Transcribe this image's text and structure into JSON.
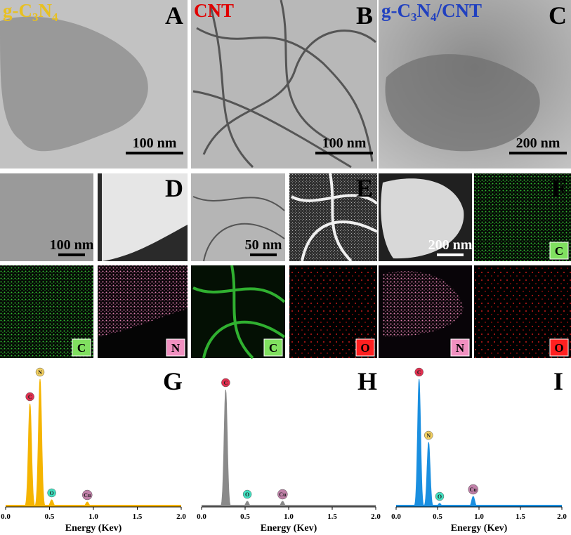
{
  "panels": [
    {
      "letter": "A",
      "name": [
        "g-C",
        "3",
        "N",
        "4"
      ],
      "name_color": "#e8c020",
      "scale_bar": "100 nm"
    },
    {
      "letter": "B",
      "name": [
        "CNT"
      ],
      "name_color": "#e00000",
      "scale_bar": "100 nm"
    },
    {
      "letter": "C",
      "name": [
        "g-C",
        "3",
        "N",
        "4",
        "/CNT"
      ],
      "name_color": "#2040c0",
      "scale_bar": "200 nm"
    }
  ],
  "row2": [
    {
      "scale_bar": "100 nm"
    },
    {
      "letter": "D"
    },
    {
      "scale_bar": "50 nm"
    },
    {
      "letter": "E"
    },
    {
      "scale_bar": "200 nm"
    },
    {
      "letter": "F",
      "element": "C"
    }
  ],
  "row3": [
    {
      "element": "C"
    },
    {
      "element": "N"
    },
    {
      "element": "C"
    },
    {
      "element": "O"
    },
    {
      "element": "N"
    },
    {
      "element": "O"
    }
  ],
  "chart_data": [
    {
      "type": "line",
      "letter": "G",
      "xlabel": "Energy (Kev)",
      "color": "#f5b400",
      "xlim": [
        0,
        2
      ],
      "xticks": [
        {
          "value": 0,
          "label": "0.0"
        },
        {
          "value": 0.5,
          "label": "0.5"
        },
        {
          "value": 1,
          "label": "1.0"
        },
        {
          "value": 1.5,
          "label": "1.5"
        },
        {
          "value": 2,
          "label": "2.0"
        }
      ],
      "ylim": [
        0,
        200
      ],
      "peaks": {
        "labels": [
          "C",
          "N",
          "O",
          "Cu"
        ],
        "x": [
          0.277,
          0.392,
          0.525,
          0.93
        ],
        "values": [
          147,
          182,
          10,
          7
        ]
      }
    },
    {
      "type": "line",
      "letter": "H",
      "xlabel": "Energy (Kev)",
      "color": "#8a8a8a",
      "xlim": [
        0,
        2
      ],
      "xticks": [
        {
          "value": 0,
          "label": "0.0"
        },
        {
          "value": 0.5,
          "label": "0.5"
        },
        {
          "value": 1,
          "label": "1.0"
        },
        {
          "value": 1.5,
          "label": "1.5"
        },
        {
          "value": 2,
          "label": "2.0"
        }
      ],
      "ylim": [
        0,
        200
      ],
      "peaks": {
        "labels": [
          "C",
          "O",
          "Cu"
        ],
        "x": [
          0.277,
          0.525,
          0.93
        ],
        "values": [
          167,
          8,
          8
        ]
      }
    },
    {
      "type": "line",
      "letter": "I",
      "xlabel": "Energy (Kev)",
      "color": "#1a8fe0",
      "xlim": [
        0,
        2
      ],
      "xticks": [
        {
          "value": 0,
          "label": "0.0"
        },
        {
          "value": 0.5,
          "label": "0.5"
        },
        {
          "value": 1,
          "label": "1.0"
        },
        {
          "value": 1.5,
          "label": "1.5"
        },
        {
          "value": 2,
          "label": "2.0"
        }
      ],
      "ylim": [
        0,
        200
      ],
      "peaks": {
        "labels": [
          "C",
          "N",
          "O",
          "Cu"
        ],
        "x": [
          0.277,
          0.392,
          0.525,
          0.93
        ],
        "values": [
          182,
          92,
          5,
          15
        ]
      }
    }
  ],
  "element_colors": {
    "C": "#80e060",
    "N": "#f090c0",
    "O": "#ff2020",
    "Cu": "#c080a8"
  },
  "marker_colors": {
    "C": "#e03050",
    "N": "#f3d060",
    "O": "#40e0c0",
    "Cu": "#c080a8"
  }
}
